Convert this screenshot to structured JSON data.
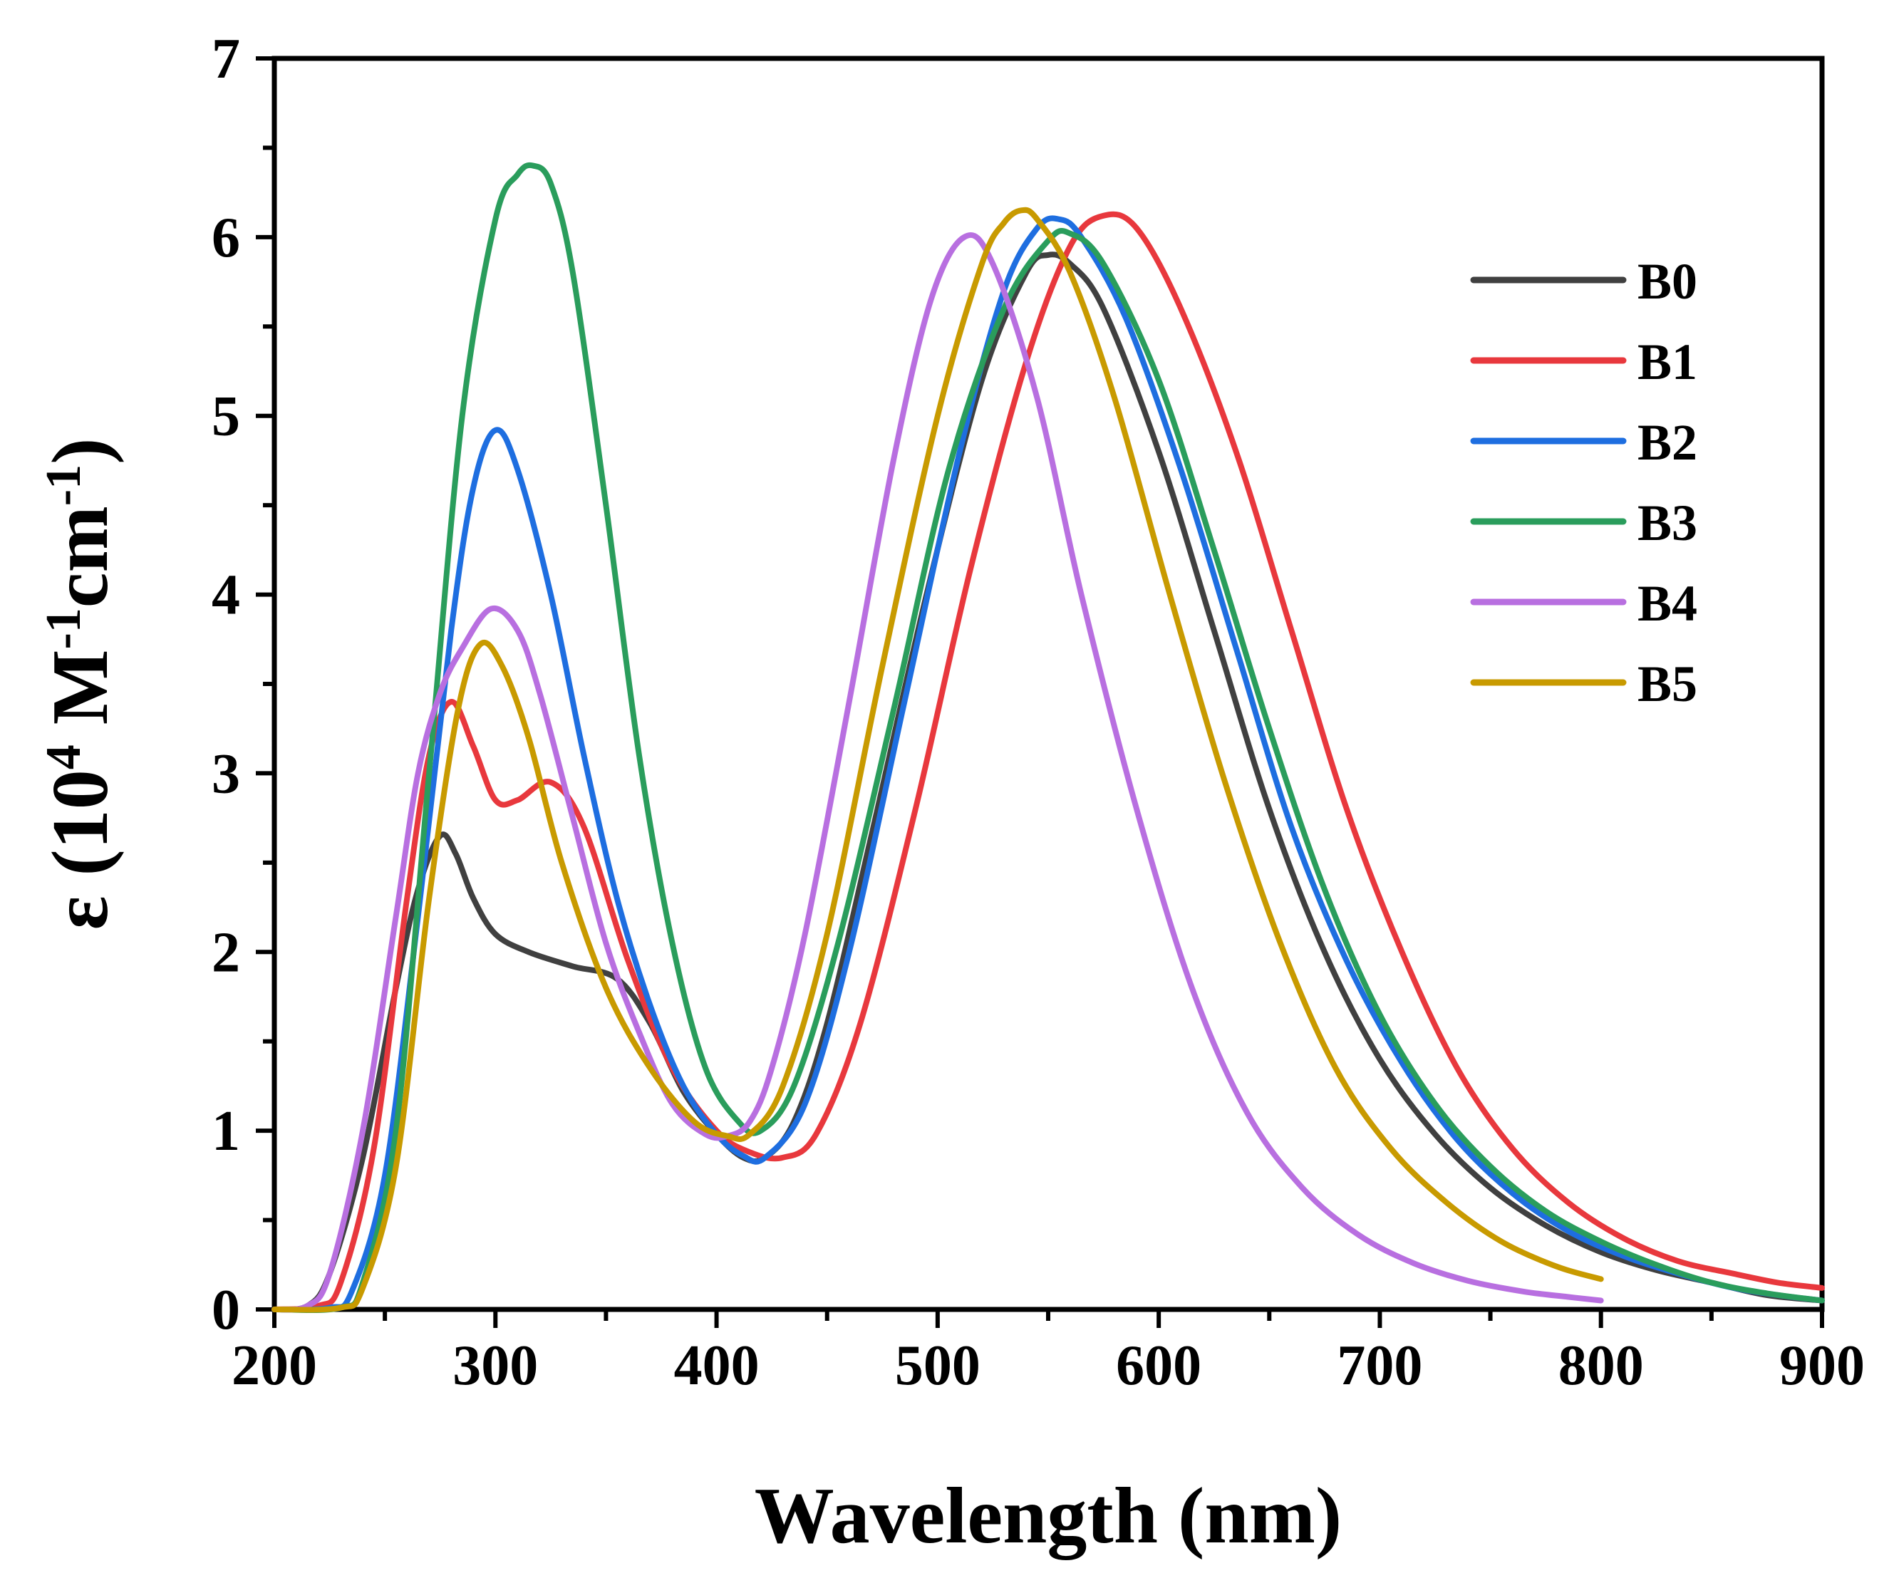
{
  "chart_data": {
    "type": "line",
    "title": "",
    "xlabel": "Wavelength (nm)",
    "ylabel": "ε (10⁴ M⁻¹cm⁻¹)",
    "ylabel_parts": {
      "prefix": "ε (10",
      "sup1": "4",
      "mid1": " M",
      "sup2": "-1",
      "mid2": "cm",
      "sup3": "-1",
      "suffix": ")"
    },
    "xlim": [
      200,
      900
    ],
    "ylim": [
      0,
      7
    ],
    "x_ticks": [
      200,
      300,
      400,
      500,
      600,
      700,
      800,
      900
    ],
    "y_ticks": [
      0,
      1,
      2,
      3,
      4,
      5,
      6,
      7
    ],
    "grid": false,
    "legend_position": "top-right",
    "series": [
      {
        "name": "B0",
        "color": "#404040",
        "x": [
          200,
          215,
          225,
          240,
          255,
          265,
          275,
          282,
          290,
          300,
          315,
          335,
          355,
          370,
          385,
          400,
          412,
          422,
          435,
          450,
          470,
          495,
          520,
          540,
          550,
          560,
          575,
          600,
          625,
          650,
          675,
          700,
          725,
          750,
          775,
          800,
          825,
          850,
          875,
          900
        ],
        "y": [
          0,
          0.02,
          0.2,
          0.85,
          1.8,
          2.35,
          2.65,
          2.55,
          2.3,
          2.1,
          2.0,
          1.92,
          1.85,
          1.6,
          1.22,
          0.98,
          0.85,
          0.85,
          1.05,
          1.6,
          2.65,
          4.0,
          5.2,
          5.8,
          5.9,
          5.85,
          5.6,
          4.8,
          3.8,
          2.8,
          2.0,
          1.4,
          0.98,
          0.68,
          0.47,
          0.32,
          0.22,
          0.15,
          0.08,
          0.05
        ]
      },
      {
        "name": "B1",
        "color": "#E8383D",
        "x": [
          200,
          220,
          230,
          245,
          260,
          270,
          280,
          290,
          300,
          310,
          325,
          340,
          360,
          380,
          400,
          415,
          430,
          445,
          465,
          490,
          515,
          540,
          560,
          575,
          590,
          610,
          635,
          660,
          685,
          710,
          735,
          760,
          785,
          810,
          835,
          860,
          880,
          900
        ],
        "y": [
          0,
          0.02,
          0.15,
          0.9,
          2.3,
          3.1,
          3.4,
          3.15,
          2.85,
          2.85,
          2.95,
          2.7,
          1.95,
          1.35,
          1.0,
          0.88,
          0.85,
          0.98,
          1.6,
          2.8,
          4.15,
          5.3,
          5.95,
          6.12,
          6.05,
          5.6,
          4.8,
          3.8,
          2.8,
          2.0,
          1.35,
          0.9,
          0.6,
          0.4,
          0.27,
          0.2,
          0.15,
          0.12
        ]
      },
      {
        "name": "B2",
        "color": "#1E6EE0",
        "x": [
          200,
          225,
          235,
          250,
          265,
          280,
          290,
          300,
          310,
          325,
          340,
          355,
          370,
          385,
          400,
          412,
          422,
          440,
          460,
          485,
          510,
          530,
          545,
          555,
          565,
          585,
          610,
          635,
          660,
          685,
          710,
          735,
          760,
          785,
          810,
          835,
          860,
          880,
          900
        ],
        "y": [
          0,
          0.01,
          0.1,
          0.75,
          2.2,
          3.8,
          4.6,
          4.92,
          4.7,
          4.0,
          3.1,
          2.3,
          1.7,
          1.25,
          0.98,
          0.86,
          0.85,
          1.15,
          2.0,
          3.4,
          4.8,
          5.7,
          6.05,
          6.1,
          6.0,
          5.55,
          4.7,
          3.7,
          2.7,
          1.95,
          1.38,
          0.95,
          0.65,
          0.44,
          0.3,
          0.2,
          0.12,
          0.08,
          0.05
        ]
      },
      {
        "name": "B3",
        "color": "#2A9D5C",
        "x": [
          200,
          230,
          240,
          255,
          270,
          285,
          300,
          310,
          317,
          325,
          335,
          350,
          365,
          380,
          395,
          410,
          420,
          435,
          455,
          480,
          505,
          530,
          550,
          560,
          575,
          600,
          625,
          650,
          675,
          700,
          725,
          750,
          775,
          800,
          825,
          850,
          875,
          900
        ],
        "y": [
          0,
          0.01,
          0.15,
          1.0,
          3.0,
          5.0,
          6.1,
          6.35,
          6.4,
          6.3,
          5.8,
          4.5,
          3.1,
          2.05,
          1.35,
          1.05,
          1.0,
          1.25,
          2.05,
          3.35,
          4.7,
          5.6,
          5.98,
          6.02,
          5.85,
          5.2,
          4.25,
          3.25,
          2.35,
          1.65,
          1.15,
          0.8,
          0.55,
          0.38,
          0.25,
          0.15,
          0.09,
          0.05
        ]
      },
      {
        "name": "B4",
        "color": "#B86FE0",
        "x": [
          200,
          215,
          225,
          240,
          255,
          265,
          275,
          285,
          298,
          310,
          320,
          335,
          350,
          365,
          380,
          395,
          405,
          415,
          425,
          440,
          460,
          480,
          497,
          512,
          525,
          545,
          565,
          590,
          615,
          640,
          665,
          690,
          715,
          740,
          765,
          785,
          800
        ],
        "y": [
          0,
          0.02,
          0.2,
          1.0,
          2.2,
          3.0,
          3.45,
          3.7,
          3.92,
          3.8,
          3.45,
          2.75,
          2.05,
          1.55,
          1.15,
          0.98,
          0.97,
          1.05,
          1.35,
          2.1,
          3.4,
          4.75,
          5.65,
          6.0,
          5.85,
          5.1,
          4.0,
          2.8,
          1.8,
          1.1,
          0.68,
          0.42,
          0.26,
          0.16,
          0.1,
          0.07,
          0.05
        ]
      },
      {
        "name": "B5",
        "color": "#C89A00",
        "x": [
          200,
          230,
          240,
          255,
          270,
          283,
          293,
          303,
          315,
          330,
          350,
          370,
          390,
          405,
          415,
          430,
          450,
          475,
          500,
          520,
          530,
          538,
          545,
          560,
          580,
          605,
          630,
          655,
          680,
          705,
          730,
          755,
          780,
          800
        ],
        "y": [
          0,
          0.01,
          0.12,
          0.8,
          2.3,
          3.35,
          3.72,
          3.6,
          3.2,
          2.5,
          1.8,
          1.35,
          1.05,
          0.97,
          0.98,
          1.25,
          2.1,
          3.6,
          5.0,
          5.85,
          6.08,
          6.15,
          6.1,
          5.8,
          5.1,
          4.0,
          2.95,
          2.05,
          1.35,
          0.9,
          0.6,
          0.38,
          0.24,
          0.17
        ]
      }
    ]
  }
}
